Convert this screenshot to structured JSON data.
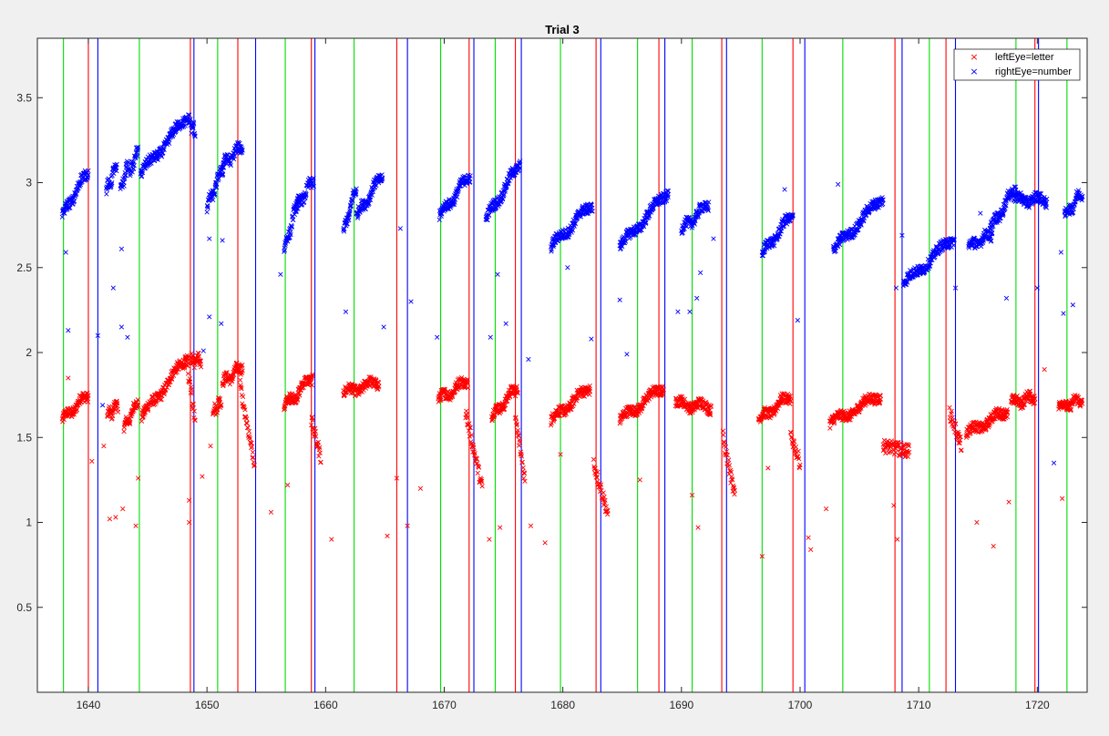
{
  "chart_data": {
    "type": "scatter",
    "title": "Trial 3",
    "xlabel": "",
    "ylabel": "",
    "xlim": [
      1635.7,
      1724.2
    ],
    "ylim": [
      0,
      3.85
    ],
    "xticks": [
      1640,
      1650,
      1660,
      1670,
      1680,
      1690,
      1700,
      1710,
      1720
    ],
    "yticks": [
      0.5,
      1,
      1.5,
      2,
      2.5,
      3,
      3.5
    ],
    "xtick_labels": [
      "1640",
      "1650",
      "1660",
      "1670",
      "1680",
      "1690",
      "1700",
      "1710",
      "1720"
    ],
    "ytick_labels": [
      "0.5",
      "1",
      "1.5",
      "2",
      "2.5",
      "3",
      "3.5"
    ],
    "grid": false,
    "legend_location": "top-right",
    "marker": "x",
    "series": [
      {
        "name": "leftEye=letter",
        "color": "#ff0000",
        "segments": [
          {
            "x0": 1637.8,
            "x1": 1640.0,
            "y0": 1.6,
            "y1": 1.76
          },
          {
            "x0": 1641.6,
            "x1": 1642.5,
            "y0": 1.62,
            "y1": 1.7
          },
          {
            "x0": 1643.0,
            "x1": 1644.2,
            "y0": 1.55,
            "y1": 1.72
          },
          {
            "x0": 1644.5,
            "x1": 1648.4,
            "y0": 1.62,
            "y1": 1.98
          },
          {
            "x0": 1648.6,
            "x1": 1649.5,
            "y0": 1.95,
            "y1": 1.96
          },
          {
            "x0": 1650.5,
            "x1": 1651.2,
            "y0": 1.65,
            "y1": 1.72
          },
          {
            "x0": 1651.3,
            "x1": 1653.0,
            "y0": 1.82,
            "y1": 1.92
          },
          {
            "x0": 1656.5,
            "x1": 1658.9,
            "y0": 1.68,
            "y1": 1.86
          },
          {
            "x0": 1661.5,
            "x1": 1664.5,
            "y0": 1.76,
            "y1": 1.83
          },
          {
            "x0": 1669.5,
            "x1": 1672.0,
            "y0": 1.72,
            "y1": 1.84
          },
          {
            "x0": 1674.0,
            "x1": 1676.2,
            "y0": 1.62,
            "y1": 1.8
          },
          {
            "x0": 1679.0,
            "x1": 1682.3,
            "y0": 1.6,
            "y1": 1.8
          },
          {
            "x0": 1684.8,
            "x1": 1688.5,
            "y0": 1.6,
            "y1": 1.8
          },
          {
            "x0": 1689.5,
            "x1": 1692.5,
            "y0": 1.7,
            "y1": 1.68
          },
          {
            "x0": 1696.5,
            "x1": 1699.2,
            "y0": 1.6,
            "y1": 1.75
          },
          {
            "x0": 1702.5,
            "x1": 1706.8,
            "y0": 1.58,
            "y1": 1.75
          },
          {
            "x0": 1714.0,
            "x1": 1717.5,
            "y0": 1.52,
            "y1": 1.66
          },
          {
            "x0": 1717.8,
            "x1": 1719.8,
            "y0": 1.7,
            "y1": 1.74
          },
          {
            "x0": 1721.8,
            "x1": 1723.8,
            "y0": 1.68,
            "y1": 1.72
          }
        ],
        "drops": [
          {
            "x0": 1648.2,
            "x1": 1649.0,
            "y0": 1.98,
            "y1": 1.6
          },
          {
            "x0": 1652.8,
            "x1": 1654.0,
            "y0": 1.8,
            "y1": 1.35
          },
          {
            "x0": 1658.8,
            "x1": 1659.6,
            "y0": 1.6,
            "y1": 1.38
          },
          {
            "x0": 1671.8,
            "x1": 1673.2,
            "y0": 1.65,
            "y1": 1.2
          },
          {
            "x0": 1676.0,
            "x1": 1676.8,
            "y0": 1.62,
            "y1": 1.25
          },
          {
            "x0": 1682.6,
            "x1": 1683.8,
            "y0": 1.35,
            "y1": 1.05
          },
          {
            "x0": 1693.5,
            "x1": 1694.5,
            "y0": 1.5,
            "y1": 1.15
          },
          {
            "x0": 1699.2,
            "x1": 1700.0,
            "y0": 1.52,
            "y1": 1.35
          },
          {
            "x0": 1707.0,
            "x1": 1709.2,
            "y0": 1.45,
            "y1": 1.42
          },
          {
            "x0": 1712.6,
            "x1": 1713.6,
            "y0": 1.65,
            "y1": 1.45
          }
        ],
        "outliers": [
          {
            "x": 1638.3,
            "y": 1.85
          },
          {
            "x": 1640.3,
            "y": 1.36
          },
          {
            "x": 1641.3,
            "y": 1.45
          },
          {
            "x": 1641.8,
            "y": 1.02
          },
          {
            "x": 1642.3,
            "y": 1.03
          },
          {
            "x": 1642.9,
            "y": 1.08
          },
          {
            "x": 1644.0,
            "y": 0.98
          },
          {
            "x": 1644.2,
            "y": 1.26
          },
          {
            "x": 1648.5,
            "y": 1.0
          },
          {
            "x": 1648.5,
            "y": 1.13
          },
          {
            "x": 1649.6,
            "y": 1.27
          },
          {
            "x": 1650.3,
            "y": 1.45
          },
          {
            "x": 1655.4,
            "y": 1.06
          },
          {
            "x": 1656.8,
            "y": 1.22
          },
          {
            "x": 1660.5,
            "y": 0.9
          },
          {
            "x": 1665.2,
            "y": 0.92
          },
          {
            "x": 1666.0,
            "y": 1.26
          },
          {
            "x": 1666.9,
            "y": 0.98
          },
          {
            "x": 1668.0,
            "y": 1.2
          },
          {
            "x": 1673.8,
            "y": 0.9
          },
          {
            "x": 1674.7,
            "y": 0.97
          },
          {
            "x": 1677.3,
            "y": 0.98
          },
          {
            "x": 1678.5,
            "y": 0.88
          },
          {
            "x": 1679.8,
            "y": 1.4
          },
          {
            "x": 1686.5,
            "y": 1.25
          },
          {
            "x": 1690.9,
            "y": 1.16
          },
          {
            "x": 1691.4,
            "y": 0.97
          },
          {
            "x": 1696.8,
            "y": 0.8
          },
          {
            "x": 1697.3,
            "y": 1.32
          },
          {
            "x": 1700.7,
            "y": 0.91
          },
          {
            "x": 1700.9,
            "y": 0.84
          },
          {
            "x": 1702.2,
            "y": 1.08
          },
          {
            "x": 1707.9,
            "y": 1.1
          },
          {
            "x": 1708.2,
            "y": 0.9
          },
          {
            "x": 1714.9,
            "y": 1.0
          },
          {
            "x": 1716.3,
            "y": 0.86
          },
          {
            "x": 1717.6,
            "y": 1.12
          },
          {
            "x": 1720.6,
            "y": 1.9
          },
          {
            "x": 1722.1,
            "y": 1.14
          }
        ]
      },
      {
        "name": "rightEye=number",
        "color": "#0000ff",
        "segments": [
          {
            "x0": 1637.8,
            "x1": 1640.0,
            "y0": 2.8,
            "y1": 3.08
          },
          {
            "x0": 1641.5,
            "x1": 1642.4,
            "y0": 2.95,
            "y1": 3.1
          },
          {
            "x0": 1642.7,
            "x1": 1643.4,
            "y0": 2.95,
            "y1": 3.12
          },
          {
            "x0": 1643.5,
            "x1": 1644.2,
            "y0": 3.05,
            "y1": 3.2
          },
          {
            "x0": 1644.4,
            "x1": 1648.5,
            "y0": 3.05,
            "y1": 3.4
          },
          {
            "x0": 1648.5,
            "x1": 1649.0,
            "y0": 3.35,
            "y1": 3.3
          },
          {
            "x0": 1650.0,
            "x1": 1651.4,
            "y0": 2.85,
            "y1": 3.1
          },
          {
            "x0": 1651.3,
            "x1": 1653.0,
            "y0": 3.1,
            "y1": 3.22
          },
          {
            "x0": 1656.5,
            "x1": 1657.7,
            "y0": 2.6,
            "y1": 2.9
          },
          {
            "x0": 1657.5,
            "x1": 1659.0,
            "y0": 2.85,
            "y1": 3.02
          },
          {
            "x0": 1661.5,
            "x1": 1662.6,
            "y0": 2.7,
            "y1": 2.98
          },
          {
            "x0": 1662.6,
            "x1": 1664.8,
            "y0": 2.8,
            "y1": 3.05
          },
          {
            "x0": 1669.6,
            "x1": 1672.2,
            "y0": 2.8,
            "y1": 3.05
          },
          {
            "x0": 1673.5,
            "x1": 1676.4,
            "y0": 2.78,
            "y1": 3.12
          },
          {
            "x0": 1679.0,
            "x1": 1682.5,
            "y0": 2.62,
            "y1": 2.88
          },
          {
            "x0": 1684.8,
            "x1": 1688.9,
            "y0": 2.62,
            "y1": 2.95
          },
          {
            "x0": 1690.0,
            "x1": 1692.3,
            "y0": 2.72,
            "y1": 2.88
          },
          {
            "x0": 1696.8,
            "x1": 1699.4,
            "y0": 2.58,
            "y1": 2.82
          },
          {
            "x0": 1702.8,
            "x1": 1707.0,
            "y0": 2.6,
            "y1": 2.92
          },
          {
            "x0": 1708.7,
            "x1": 1713.0,
            "y0": 2.4,
            "y1": 2.68
          },
          {
            "x0": 1714.2,
            "x1": 1716.2,
            "y0": 2.62,
            "y1": 2.7
          },
          {
            "x0": 1716.0,
            "x1": 1718.2,
            "y0": 2.72,
            "y1": 2.98
          },
          {
            "x0": 1718.0,
            "x1": 1720.8,
            "y0": 2.9,
            "y1": 2.9
          },
          {
            "x0": 1722.3,
            "x1": 1723.8,
            "y0": 2.8,
            "y1": 2.95
          }
        ],
        "drops": [],
        "outliers": [
          {
            "x": 1638.1,
            "y": 2.59
          },
          {
            "x": 1638.3,
            "y": 2.13
          },
          {
            "x": 1640.8,
            "y": 2.1
          },
          {
            "x": 1641.2,
            "y": 1.69
          },
          {
            "x": 1642.1,
            "y": 2.38
          },
          {
            "x": 1642.8,
            "y": 2.61
          },
          {
            "x": 1642.8,
            "y": 2.15
          },
          {
            "x": 1643.3,
            "y": 2.09
          },
          {
            "x": 1650.2,
            "y": 2.67
          },
          {
            "x": 1650.2,
            "y": 2.21
          },
          {
            "x": 1651.2,
            "y": 2.17
          },
          {
            "x": 1651.3,
            "y": 2.66
          },
          {
            "x": 1649.7,
            "y": 2.01
          },
          {
            "x": 1656.2,
            "y": 2.46
          },
          {
            "x": 1661.7,
            "y": 2.24
          },
          {
            "x": 1664.9,
            "y": 2.15
          },
          {
            "x": 1666.3,
            "y": 2.73
          },
          {
            "x": 1667.2,
            "y": 2.3
          },
          {
            "x": 1669.4,
            "y": 2.09
          },
          {
            "x": 1673.9,
            "y": 2.09
          },
          {
            "x": 1674.5,
            "y": 2.46
          },
          {
            "x": 1675.2,
            "y": 2.17
          },
          {
            "x": 1677.1,
            "y": 1.96
          },
          {
            "x": 1680.4,
            "y": 2.5
          },
          {
            "x": 1682.4,
            "y": 2.08
          },
          {
            "x": 1684.8,
            "y": 2.31
          },
          {
            "x": 1685.4,
            "y": 1.99
          },
          {
            "x": 1689.7,
            "y": 2.24
          },
          {
            "x": 1690.7,
            "y": 2.24
          },
          {
            "x": 1691.3,
            "y": 2.32
          },
          {
            "x": 1691.6,
            "y": 2.47
          },
          {
            "x": 1692.7,
            "y": 2.67
          },
          {
            "x": 1698.7,
            "y": 2.96
          },
          {
            "x": 1699.8,
            "y": 2.19
          },
          {
            "x": 1703.2,
            "y": 2.99
          },
          {
            "x": 1708.1,
            "y": 2.38
          },
          {
            "x": 1708.6,
            "y": 2.69
          },
          {
            "x": 1713.1,
            "y": 2.38
          },
          {
            "x": 1715.2,
            "y": 2.82
          },
          {
            "x": 1717.4,
            "y": 2.32
          },
          {
            "x": 1720.0,
            "y": 2.38
          },
          {
            "x": 1722.0,
            "y": 2.59
          },
          {
            "x": 1722.2,
            "y": 2.23
          },
          {
            "x": 1723.0,
            "y": 2.28
          },
          {
            "x": 1721.4,
            "y": 1.35
          }
        ]
      }
    ],
    "vertical_lines": {
      "green": [
        1637.9,
        1644.3,
        1650.9,
        1656.6,
        1662.4,
        1669.7,
        1674.3,
        1679.8,
        1686.3,
        1690.9,
        1696.8,
        1703.6,
        1710.9,
        1718.2,
        1722.5
      ],
      "red": [
        1640.0,
        1648.6,
        1652.6,
        1658.8,
        1666.0,
        1672.1,
        1676.0,
        1682.8,
        1688.1,
        1693.4,
        1699.4,
        1708.0,
        1712.3,
        1719.8
      ],
      "blue": [
        1640.8,
        1648.9,
        1654.1,
        1659.1,
        1666.9,
        1672.5,
        1676.5,
        1683.2,
        1688.6,
        1693.8,
        1700.4,
        1708.6,
        1713.1,
        1720.1
      ]
    },
    "line_colors": {
      "green": "#00dd00",
      "red": "#ff0000",
      "blue": "#0000ff"
    }
  }
}
